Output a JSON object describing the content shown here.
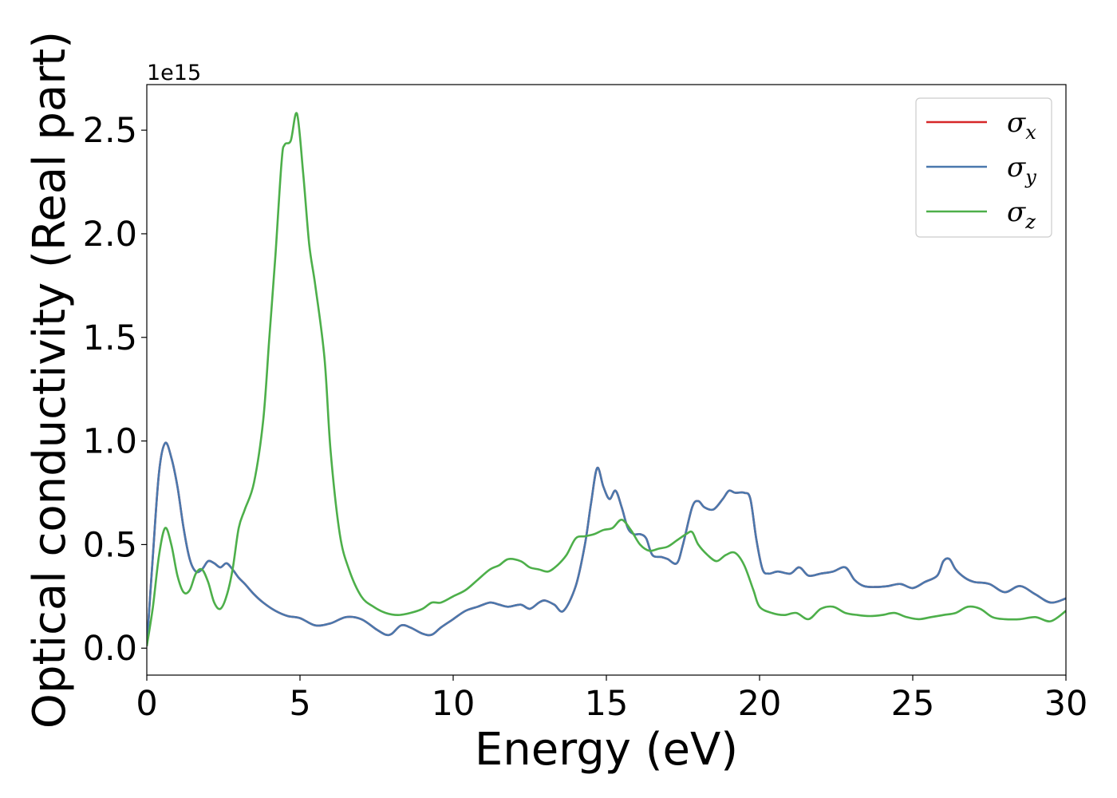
{
  "chart_data": {
    "type": "line",
    "xlabel": "Energy (eV)",
    "ylabel": "Optical conductivity (Real part)",
    "y_offset_label": "1e15",
    "xlim": [
      0,
      30
    ],
    "ylim": [
      -0.13,
      2.72
    ],
    "x_ticks": [
      0,
      5,
      10,
      15,
      20,
      25,
      30
    ],
    "x_tick_labels": [
      "0",
      "5",
      "10",
      "15",
      "20",
      "25",
      "30"
    ],
    "y_ticks": [
      0.0,
      0.5,
      1.0,
      1.5,
      2.0,
      2.5
    ],
    "y_tick_labels": [
      "0.0",
      "0.5",
      "1.0",
      "1.5",
      "2.0",
      "2.5"
    ],
    "grid": false,
    "legend_position": "top-right",
    "series": [
      {
        "name": "σx",
        "label_base": "σ",
        "label_sub": "x",
        "color": "#d62728",
        "x": [
          0,
          0.2,
          0.4,
          0.6,
          0.8,
          1.0,
          1.2,
          1.4,
          1.6,
          1.8,
          2.0,
          2.2,
          2.4,
          2.6,
          2.8,
          3.0,
          3.2,
          3.5,
          3.8,
          4.2,
          4.6,
          5.0,
          5.5,
          6.0,
          6.5,
          7.0,
          7.5,
          7.8,
          8.0,
          8.3,
          8.6,
          9.0,
          9.3,
          9.6,
          10.0,
          10.4,
          10.8,
          11.2,
          11.5,
          11.8,
          12.2,
          12.5,
          12.8,
          13.0,
          13.3,
          13.6,
          14.0,
          14.3,
          14.5,
          14.7,
          14.9,
          15.1,
          15.3,
          15.5,
          15.7,
          15.9,
          16.1,
          16.3,
          16.5,
          16.8,
          17.0,
          17.3,
          17.5,
          17.8,
          18.0,
          18.2,
          18.5,
          18.8,
          19.0,
          19.2,
          19.5,
          19.7,
          19.9,
          20.1,
          20.3,
          20.6,
          21.0,
          21.3,
          21.6,
          22.0,
          22.4,
          22.8,
          23.1,
          23.4,
          23.8,
          24.2,
          24.6,
          25.0,
          25.4,
          25.8,
          26.0,
          26.2,
          26.4,
          26.7,
          27.0,
          27.5,
          28.0,
          28.5,
          29.0,
          29.5,
          30.0
        ],
        "values": [
          0.01,
          0.45,
          0.85,
          0.99,
          0.92,
          0.78,
          0.58,
          0.43,
          0.37,
          0.38,
          0.42,
          0.41,
          0.39,
          0.41,
          0.38,
          0.34,
          0.31,
          0.26,
          0.22,
          0.18,
          0.155,
          0.145,
          0.11,
          0.12,
          0.15,
          0.14,
          0.09,
          0.065,
          0.07,
          0.11,
          0.1,
          0.07,
          0.065,
          0.1,
          0.14,
          0.18,
          0.2,
          0.22,
          0.21,
          0.2,
          0.21,
          0.19,
          0.22,
          0.23,
          0.21,
          0.18,
          0.3,
          0.5,
          0.7,
          0.87,
          0.78,
          0.72,
          0.76,
          0.68,
          0.58,
          0.55,
          0.55,
          0.53,
          0.45,
          0.44,
          0.43,
          0.41,
          0.5,
          0.68,
          0.71,
          0.68,
          0.67,
          0.72,
          0.76,
          0.75,
          0.75,
          0.72,
          0.52,
          0.38,
          0.36,
          0.37,
          0.36,
          0.39,
          0.35,
          0.36,
          0.37,
          0.39,
          0.33,
          0.3,
          0.295,
          0.3,
          0.31,
          0.29,
          0.32,
          0.35,
          0.42,
          0.43,
          0.38,
          0.34,
          0.32,
          0.31,
          0.27,
          0.3,
          0.26,
          0.22,
          0.24
        ]
      },
      {
        "name": "σy",
        "label_base": "σ",
        "label_sub": "y",
        "color": "#4a78ad",
        "x": [
          0,
          0.2,
          0.4,
          0.6,
          0.8,
          1.0,
          1.2,
          1.4,
          1.6,
          1.8,
          2.0,
          2.2,
          2.4,
          2.6,
          2.8,
          3.0,
          3.2,
          3.5,
          3.8,
          4.2,
          4.6,
          5.0,
          5.5,
          6.0,
          6.5,
          7.0,
          7.5,
          7.8,
          8.0,
          8.3,
          8.6,
          9.0,
          9.3,
          9.6,
          10.0,
          10.4,
          10.8,
          11.2,
          11.5,
          11.8,
          12.2,
          12.5,
          12.8,
          13.0,
          13.3,
          13.6,
          14.0,
          14.3,
          14.5,
          14.7,
          14.9,
          15.1,
          15.3,
          15.5,
          15.7,
          15.9,
          16.1,
          16.3,
          16.5,
          16.8,
          17.0,
          17.3,
          17.5,
          17.8,
          18.0,
          18.2,
          18.5,
          18.8,
          19.0,
          19.2,
          19.5,
          19.7,
          19.9,
          20.1,
          20.3,
          20.6,
          21.0,
          21.3,
          21.6,
          22.0,
          22.4,
          22.8,
          23.1,
          23.4,
          23.8,
          24.2,
          24.6,
          25.0,
          25.4,
          25.8,
          26.0,
          26.2,
          26.4,
          26.7,
          27.0,
          27.5,
          28.0,
          28.5,
          29.0,
          29.5,
          30.0
        ],
        "values": [
          0.01,
          0.45,
          0.85,
          0.99,
          0.92,
          0.78,
          0.58,
          0.43,
          0.37,
          0.38,
          0.42,
          0.41,
          0.39,
          0.41,
          0.38,
          0.34,
          0.31,
          0.26,
          0.22,
          0.18,
          0.155,
          0.145,
          0.11,
          0.12,
          0.15,
          0.14,
          0.09,
          0.065,
          0.07,
          0.11,
          0.1,
          0.07,
          0.065,
          0.1,
          0.14,
          0.18,
          0.2,
          0.22,
          0.21,
          0.2,
          0.21,
          0.19,
          0.22,
          0.23,
          0.21,
          0.18,
          0.3,
          0.5,
          0.7,
          0.87,
          0.78,
          0.72,
          0.76,
          0.68,
          0.58,
          0.55,
          0.55,
          0.53,
          0.45,
          0.44,
          0.43,
          0.41,
          0.5,
          0.68,
          0.71,
          0.68,
          0.67,
          0.72,
          0.76,
          0.75,
          0.75,
          0.72,
          0.52,
          0.38,
          0.36,
          0.37,
          0.36,
          0.39,
          0.35,
          0.36,
          0.37,
          0.39,
          0.33,
          0.3,
          0.295,
          0.3,
          0.31,
          0.29,
          0.32,
          0.35,
          0.42,
          0.43,
          0.38,
          0.34,
          0.32,
          0.31,
          0.27,
          0.3,
          0.26,
          0.22,
          0.24
        ]
      },
      {
        "name": "σz",
        "label_base": "σ",
        "label_sub": "z",
        "color": "#4daf4a",
        "x": [
          0,
          0.2,
          0.4,
          0.6,
          0.8,
          1.0,
          1.2,
          1.4,
          1.6,
          1.8,
          2.0,
          2.2,
          2.4,
          2.6,
          2.8,
          3.0,
          3.2,
          3.5,
          3.8,
          4.0,
          4.2,
          4.4,
          4.5,
          4.7,
          4.9,
          5.1,
          5.3,
          5.5,
          5.8,
          6.0,
          6.3,
          6.6,
          7.0,
          7.4,
          7.8,
          8.2,
          8.6,
          9.0,
          9.3,
          9.6,
          10.0,
          10.4,
          10.8,
          11.2,
          11.5,
          11.8,
          12.2,
          12.5,
          12.8,
          13.1,
          13.4,
          13.7,
          14.0,
          14.3,
          14.6,
          14.9,
          15.2,
          15.5,
          15.8,
          16.1,
          16.4,
          16.7,
          17.0,
          17.3,
          17.6,
          17.8,
          18.0,
          18.3,
          18.6,
          18.9,
          19.2,
          19.5,
          19.8,
          20.0,
          20.4,
          20.8,
          21.2,
          21.6,
          22.0,
          22.4,
          22.8,
          23.2,
          23.6,
          24.0,
          24.4,
          24.8,
          25.2,
          25.6,
          26.0,
          26.4,
          26.8,
          27.2,
          27.6,
          28.0,
          28.5,
          29.0,
          29.5,
          30.0
        ],
        "values": [
          0.01,
          0.2,
          0.45,
          0.58,
          0.5,
          0.35,
          0.27,
          0.28,
          0.36,
          0.38,
          0.32,
          0.22,
          0.19,
          0.25,
          0.38,
          0.58,
          0.67,
          0.8,
          1.1,
          1.5,
          1.9,
          2.35,
          2.43,
          2.45,
          2.58,
          2.3,
          1.95,
          1.75,
          1.4,
          0.95,
          0.55,
          0.38,
          0.25,
          0.2,
          0.17,
          0.16,
          0.17,
          0.19,
          0.22,
          0.22,
          0.25,
          0.28,
          0.33,
          0.38,
          0.4,
          0.43,
          0.42,
          0.39,
          0.38,
          0.37,
          0.4,
          0.45,
          0.53,
          0.54,
          0.55,
          0.57,
          0.58,
          0.62,
          0.57,
          0.5,
          0.47,
          0.48,
          0.49,
          0.52,
          0.55,
          0.56,
          0.5,
          0.45,
          0.42,
          0.45,
          0.46,
          0.4,
          0.28,
          0.2,
          0.17,
          0.16,
          0.17,
          0.14,
          0.19,
          0.2,
          0.17,
          0.16,
          0.155,
          0.16,
          0.17,
          0.15,
          0.14,
          0.15,
          0.16,
          0.17,
          0.2,
          0.19,
          0.15,
          0.14,
          0.14,
          0.15,
          0.13,
          0.18
        ]
      }
    ]
  }
}
